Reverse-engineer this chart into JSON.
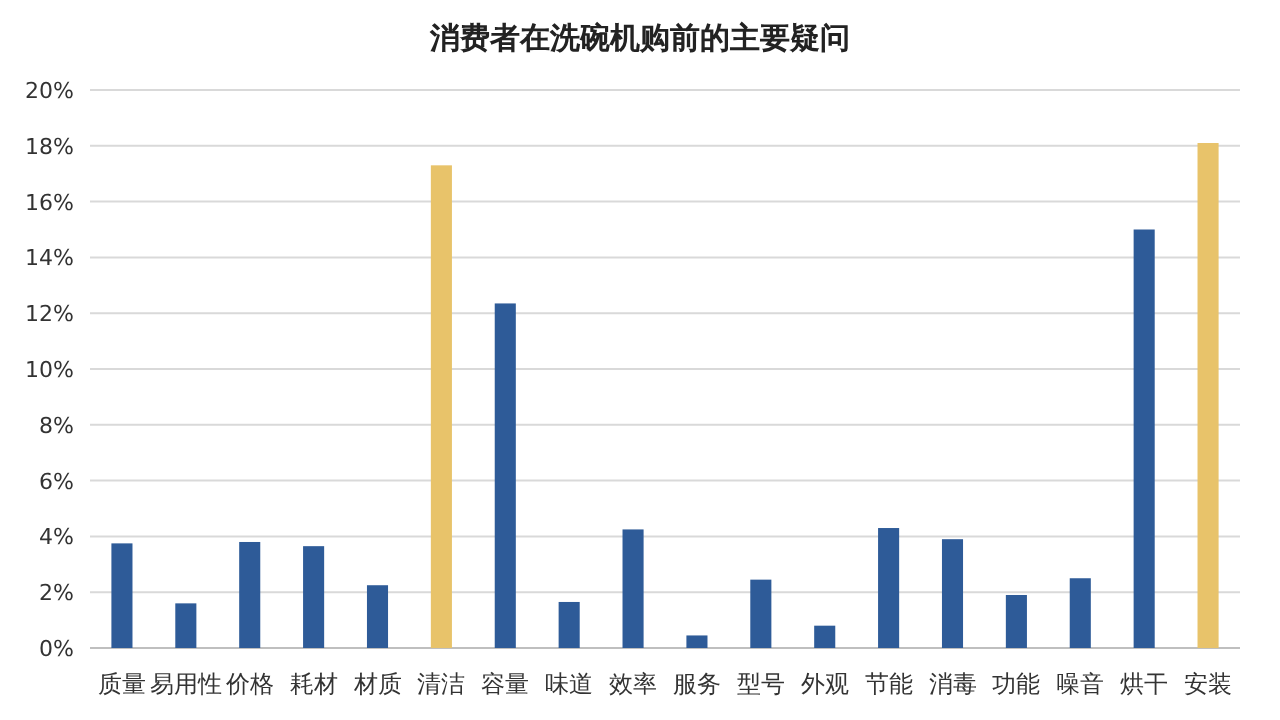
{
  "chart_data": {
    "type": "bar",
    "title": "消费者在洗碗机购前的主要疑问",
    "categories": [
      "质量",
      "易用性",
      "价格",
      "耗材",
      "材质",
      "清洁",
      "容量",
      "味道",
      "效率",
      "服务",
      "型号",
      "外观",
      "节能",
      "消毒",
      "功能",
      "噪音",
      "烘干",
      "安装"
    ],
    "values": [
      3.75,
      1.6,
      3.8,
      3.65,
      2.25,
      17.3,
      12.35,
      1.65,
      4.25,
      0.45,
      2.45,
      0.8,
      4.3,
      3.9,
      1.9,
      2.5,
      15.0,
      18.1
    ],
    "colors": [
      "#2e5b98",
      "#2e5b98",
      "#2e5b98",
      "#2e5b98",
      "#2e5b98",
      "#e8c36a",
      "#2e5b98",
      "#2e5b98",
      "#2e5b98",
      "#2e5b98",
      "#2e5b98",
      "#2e5b98",
      "#2e5b98",
      "#2e5b98",
      "#2e5b98",
      "#2e5b98",
      "#2e5b98",
      "#e8c36a"
    ],
    "ylim": [
      0,
      20
    ],
    "yticks": [
      {
        "value": 0,
        "label": "0%"
      },
      {
        "value": 2,
        "label": "2%"
      },
      {
        "value": 4,
        "label": "4%"
      },
      {
        "value": 6,
        "label": "6%"
      },
      {
        "value": 8,
        "label": "8%"
      },
      {
        "value": 10,
        "label": "10%"
      },
      {
        "value": 12,
        "label": "12%"
      },
      {
        "value": 14,
        "label": "14%"
      },
      {
        "value": 16,
        "label": "16%"
      },
      {
        "value": 18,
        "label": "18%"
      },
      {
        "value": 20,
        "label": "20%"
      }
    ],
    "grid": "y"
  }
}
